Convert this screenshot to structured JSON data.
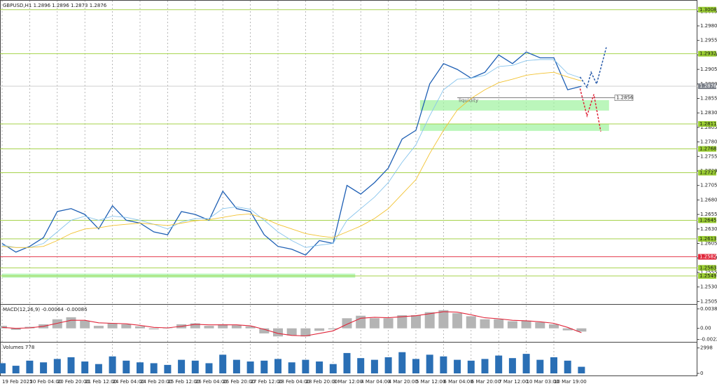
{
  "chart_data": [
    {
      "type": "line",
      "title": "GBPUSD,H1  1.2896 1.2896 1.2873 1.2876",
      "categories": [
        "19 Feb 2025",
        null,
        "20 Feb 04:00",
        null,
        "20 Feb 20:00",
        null,
        "21 Feb 12:00",
        null,
        "24 Feb 04:00",
        null,
        "24 Feb 20:00",
        null,
        "25 Feb 12:00",
        null,
        "26 Feb 04:00",
        null,
        "26 Feb 20:00",
        null,
        "27 Feb 12:00",
        null,
        "28 Feb 04:00",
        null,
        "28 Feb 20:00",
        null,
        "3 Mar 12:00",
        null,
        "4 Mar 04:00",
        null,
        "4 Mar 20:00",
        null,
        "5 Mar 12:00",
        null,
        "6 Mar 04:00",
        null,
        "6 Mar 20:00",
        null,
        "7 Mar 12:00",
        null,
        "10 Mar 03:00",
        null,
        "10 Mar 19:00",
        null,
        null
      ],
      "series": [
        {
          "color": "#1e5fb4",
          "values": [
            1.2605,
            1.259,
            1.26,
            1.2615,
            1.266,
            1.2665,
            1.2655,
            1.263,
            1.267,
            1.2645,
            1.264,
            1.2625,
            1.262,
            1.266,
            1.2655,
            1.2645,
            1.2695,
            1.2665,
            1.266,
            1.262,
            1.26,
            1.2595,
            1.2585,
            1.261,
            1.2605,
            1.2705,
            1.269,
            1.271,
            1.2735,
            1.2785,
            1.28,
            1.288,
            1.2915,
            1.2905,
            1.289,
            1.29,
            1.293,
            1.2915,
            1.2935,
            1.2925,
            1.2925,
            1.287,
            1.2876
          ]
        },
        {
          "color": "#87c4ec",
          "values": [
            1.2602,
            1.2598,
            1.2598,
            1.2605,
            1.2625,
            1.2645,
            1.2652,
            1.2645,
            1.2652,
            1.265,
            1.2645,
            1.2638,
            1.263,
            1.2642,
            1.2648,
            1.2648,
            1.2665,
            1.2668,
            1.2664,
            1.2645,
            1.2625,
            1.261,
            1.2598,
            1.2602,
            1.2605,
            1.2645,
            1.2665,
            1.2685,
            1.271,
            1.2745,
            1.2775,
            1.2825,
            1.287,
            1.2888,
            1.289,
            1.2895,
            1.291,
            1.2912,
            1.292,
            1.2922,
            1.2922,
            1.2898,
            1.289
          ]
        },
        {
          "color": "#f2c230",
          "values": [
            1.26,
            1.2598,
            1.2598,
            1.26,
            1.261,
            1.2622,
            1.263,
            1.2632,
            1.2636,
            1.2638,
            1.264,
            1.2638,
            1.2636,
            1.264,
            1.2644,
            1.2646,
            1.265,
            1.2654,
            1.2656,
            1.2648,
            1.2638,
            1.263,
            1.2622,
            1.2618,
            1.2615,
            1.2625,
            1.2635,
            1.2648,
            1.2665,
            1.269,
            1.2715,
            1.276,
            1.28,
            1.2835,
            1.2855,
            1.287,
            1.2882,
            1.2888,
            1.2895,
            1.2898,
            1.29,
            1.2892,
            1.2885
          ]
        }
      ],
      "forecast": [
        {
          "color": "#2a5caa",
          "x": [
            41.9,
            42.4,
            42.7,
            43.1,
            43.8
          ],
          "values": [
            1.2892,
            1.2874,
            1.29,
            1.288,
            1.2943
          ]
        },
        {
          "color": "#e0263a",
          "x": [
            41.9,
            42.4,
            42.9,
            43.4
          ],
          "values": [
            1.2872,
            1.2825,
            1.2862,
            1.2798
          ]
        }
      ],
      "levels": [
        {
          "value": 1.3008,
          "color": "#9acd32"
        },
        {
          "value": 1.2932,
          "color": "#9acd32"
        },
        {
          "value": 1.2811,
          "color": "#9acd32"
        },
        {
          "value": 1.2768,
          "color": "#9acd32"
        },
        {
          "value": 1.2727,
          "color": "#9acd32"
        },
        {
          "value": 1.2645,
          "color": "#9acd32"
        },
        {
          "value": 1.2613,
          "color": "#9acd32"
        },
        {
          "value": 1.2582,
          "color": "#e0263a"
        },
        {
          "value": 1.2563,
          "color": "#9acd32"
        },
        {
          "value": 1.2549,
          "color": "#9acd32"
        }
      ],
      "price_line": {
        "value": 1.2876,
        "color": "#7a7f88"
      },
      "liquidity": {
        "label": "liquidity",
        "value": 1.2856
      },
      "zones": [
        {
          "range": [
            1.2834,
            1.2852
          ],
          "from": 30.3,
          "to": 44
        },
        {
          "range": [
            1.2799,
            1.2811
          ],
          "from": 30.3,
          "to": 44
        },
        {
          "range": [
            1.2546,
            1.2553
          ],
          "from": 0,
          "to": 25.6
        }
      ],
      "ylim": [
        1.2503,
        1.3021
      ],
      "yticks": [
        1.3005,
        {
          "value": 1.298,
          "label": "1.2980"
        },
        1.2955,
        {
          "value": 1.293,
          "label": "1.2930"
        },
        1.2905,
        {
          "value": 1.288,
          "label": "1.2880"
        },
        1.2855,
        {
          "value": 1.283,
          "label": "1.2830"
        },
        1.2805,
        {
          "value": 1.278,
          "label": "1.2780"
        },
        1.2755,
        {
          "value": 1.273,
          "label": "1.2730"
        },
        1.2705,
        {
          "value": 1.268,
          "label": "1.2680"
        },
        1.2655,
        {
          "value": 1.263,
          "label": "1.2630"
        },
        1.2605,
        {
          "value": 1.258,
          "label": "1.2580"
        },
        1.2555,
        {
          "value": 1.253,
          "label": "1.2530"
        },
        1.2505
      ]
    },
    {
      "type": "macd",
      "title": "MACD(12,26,9) -0.00064 -0.00086",
      "values": [
        0.0005,
        -0.0003,
        0.0003,
        0.0008,
        0.0018,
        0.0022,
        0.0015,
        0.0005,
        0.001,
        0.0008,
        0.0004,
        -0.0002,
        0.0,
        0.0008,
        0.001,
        0.0005,
        0.0008,
        0.0006,
        0.0004,
        -0.001,
        -0.0016,
        -0.0014,
        -0.0016,
        -0.0005,
        -0.0002,
        0.002,
        0.0025,
        0.002,
        0.002,
        0.0026,
        0.0026,
        0.0032,
        0.0036,
        0.003,
        0.0024,
        0.0018,
        0.0018,
        0.0014,
        0.0015,
        0.0012,
        0.0008,
        -0.0004,
        -0.00064
      ],
      "color": "#b4b4b4",
      "signal": {
        "color": "#e0263a",
        "values": [
          0.0002,
          0.0,
          0.0001,
          0.0004,
          0.001,
          0.0016,
          0.0016,
          0.0011,
          0.001,
          0.0009,
          0.0006,
          0.0002,
          0.0001,
          0.0004,
          0.0008,
          0.0007,
          0.0007,
          0.0007,
          0.0005,
          -0.0002,
          -0.001,
          -0.0014,
          -0.0015,
          -0.001,
          -0.0005,
          0.0008,
          0.002,
          0.0022,
          0.0021,
          0.0023,
          0.0025,
          0.0029,
          0.0033,
          0.0032,
          0.0027,
          0.0021,
          0.0019,
          0.0016,
          0.0015,
          0.0013,
          0.001,
          0.0002,
          -0.00086
        ]
      },
      "ylim": [
        -0.0024,
        0.0044
      ],
      "yticks": [
        0.00386,
        {
          "value": 0,
          "label": "0.00"
        },
        -0.00221
      ]
    },
    {
      "type": "volume",
      "title": "Volumes 778",
      "values": [
        1200,
        900,
        1500,
        1300,
        1700,
        1900,
        1400,
        1100,
        2000,
        1500,
        1300,
        1200,
        1000,
        1600,
        1500,
        1200,
        2200,
        1600,
        1400,
        1500,
        1700,
        1300,
        1600,
        1400,
        1100,
        2400,
        1800,
        1600,
        1900,
        2500,
        1700,
        2200,
        2000,
        1600,
        1500,
        1700,
        2100,
        1800,
        2300,
        1600,
        1900,
        1500,
        778
      ],
      "color": "#2a6fb5",
      "ylim": [
        0,
        3300
      ],
      "yticks": [
        2998,
        0
      ]
    }
  ]
}
